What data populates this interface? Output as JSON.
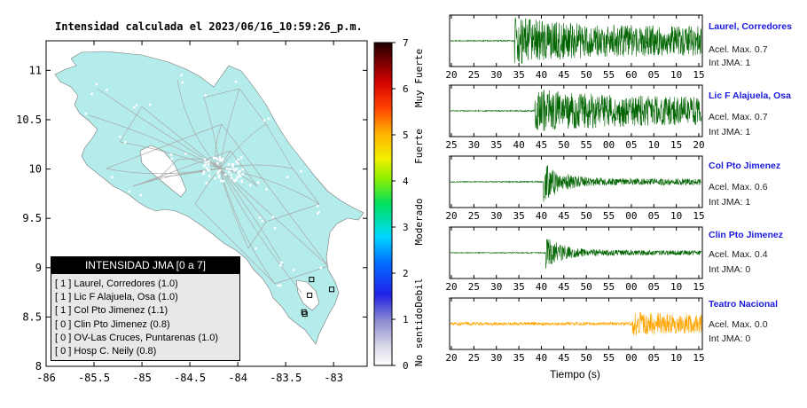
{
  "map": {
    "title": "Intensidad calculada el 2023/06/16_10:59:26_p.m.",
    "x_ticks": [
      "-86",
      "-85.5",
      "-85",
      "-84.5",
      "-84",
      "-83.5",
      "-83"
    ],
    "y_ticks": [
      "8",
      "8.5",
      "9",
      "9.5",
      "10",
      "10.5",
      "11"
    ],
    "land_color": "#b4ecec",
    "sea_color": "#ffffff"
  },
  "colorbar": {
    "ticks": [
      "0",
      "1",
      "2",
      "3",
      "4",
      "5",
      "6",
      "7"
    ],
    "labels": [
      "No sentido",
      "Debil",
      "Moderado",
      "Fuerte",
      "Muy Fuerte"
    ]
  },
  "legend": {
    "title": "INTENSIDAD JMA [0 a 7]",
    "items": [
      "[ 1 ]  Laurel, Corredores (1.0)",
      "[ 1 ]  Lic F Alajuela, Osa (1.0)",
      "[ 1 ]  Col Pto Jimenez (1.1)",
      "[ 0 ]  Clin Pto Jimenez (0.8)",
      "[ 0 ]  OV-Las Cruces, Puntarenas (1.0)",
      "[ 0 ]  Hosp C. Neily (0.8)"
    ]
  },
  "stations": [
    {
      "name": "Laurel, Corredores",
      "acc": "Acel. Max. 0.7",
      "int": "Int JMA: 1",
      "color": "#006400",
      "ticks": [
        "20",
        "25",
        "30",
        "35",
        "40",
        "45",
        "50",
        "55",
        "60",
        "05",
        "10",
        "15"
      ]
    },
    {
      "name": "Lic F Alajuela, Osa",
      "acc": "Acel. Max. 0.7",
      "int": "Int JMA: 1",
      "color": "#006400",
      "ticks": [
        "25",
        "30",
        "35",
        "40",
        "45",
        "50",
        "55",
        "00",
        "05",
        "10",
        "15",
        "20"
      ]
    },
    {
      "name": "Col Pto Jimenez",
      "acc": "Acel. Max. 0.6",
      "int": "Int JMA: 1",
      "color": "#006400",
      "ticks": [
        "20",
        "25",
        "30",
        "35",
        "40",
        "45",
        "50",
        "55",
        "00",
        "05",
        "10",
        "15"
      ]
    },
    {
      "name": "Clin Pto Jimenez",
      "acc": "Acel. Max. 0.4",
      "int": "Int JMA: 0",
      "color": "#006400",
      "ticks": [
        "20",
        "25",
        "30",
        "35",
        "40",
        "45",
        "50",
        "55",
        "00",
        "05",
        "10",
        "15"
      ]
    },
    {
      "name": "Teatro Nacional",
      "acc": "Acel. Max. 0.0",
      "int": "Int JMA: 0",
      "color": "#ffa500",
      "ticks": [
        "20",
        "25",
        "30",
        "35",
        "40",
        "45",
        "50",
        "55",
        "00",
        "05",
        "10",
        "15"
      ]
    }
  ],
  "time_axis_label": "Tiempo (s)",
  "chart_data": [
    {
      "type": "scatter",
      "title": "Intensidad calculada el 2023/06/16_10:59:26_p.m.",
      "xlim": [
        -86,
        -82.65
      ],
      "ylim": [
        8,
        11.3
      ],
      "stations_plotted": [
        {
          "lon": -83.02,
          "lat": 8.78,
          "label": "Laurel, Corredores"
        },
        {
          "lon": -83.25,
          "lat": 8.72,
          "label": "Lic F Alajuela, Osa"
        },
        {
          "lon": -83.3,
          "lat": 8.53,
          "label": "Col Pto Jimenez"
        },
        {
          "lon": -83.31,
          "lat": 8.55,
          "label": "Clin Pto Jimenez"
        },
        {
          "lon": -83.23,
          "lat": 8.88,
          "label": "Hosp C. Neily"
        }
      ]
    },
    {
      "type": "line",
      "series": [
        {
          "name": "Laurel, Corredores",
          "onset_s": 35,
          "max_acc": 0.7
        },
        {
          "name": "Lic F Alajuela, Osa",
          "onset_s": 41,
          "max_acc": 0.7
        },
        {
          "name": "Col Pto Jimenez",
          "onset_s": 40,
          "max_acc": 0.6
        },
        {
          "name": "Clin Pto Jimenez",
          "onset_s": 40,
          "max_acc": 0.4
        },
        {
          "name": "Teatro Nacional",
          "onset_s": 63,
          "max_acc": 0.0
        }
      ]
    }
  ]
}
